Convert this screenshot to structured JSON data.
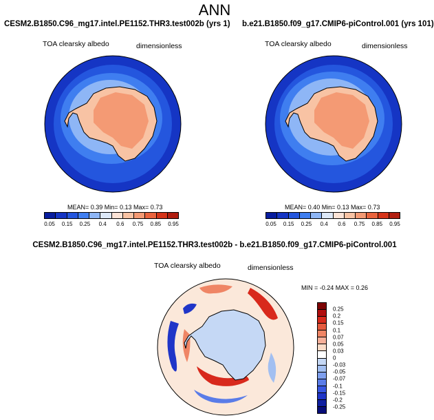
{
  "title": "ANN",
  "colors": {
    "albedo_scale": [
      "#081d9e",
      "#1535c4",
      "#2456de",
      "#3f7ef0",
      "#8eb6f6",
      "#dde8f7",
      "#fbe3d6",
      "#f8c3a4",
      "#f49a74",
      "#ea643e",
      "#d53419",
      "#b11e10",
      "#830d06"
    ],
    "diff_scale": [
      "#7d0404",
      "#b00d0d",
      "#d8291c",
      "#e55a3e",
      "#ef8565",
      "#f6b09a",
      "#fbdcc8",
      "#ffffff",
      "#c5d8f5",
      "#a2bff1",
      "#7e9fee",
      "#5a7ce8",
      "#3756e1",
      "#1f35c8",
      "#0f1fa0",
      "#070d78"
    ],
    "coast": "#000000"
  },
  "panels": {
    "left": {
      "case": "CESM2.B1850.C96_mg17.intel.PE1152.THR3.test002b (yrs 1)",
      "variable": "TOA clearsky albedo",
      "units": "dimensionless",
      "stats": "MEAN=  0.39  Min=  0.13  Max=  0.73"
    },
    "right": {
      "case": "b.e21.B1850.f09_g17.CMIP6-piControl.001 (yrs 101)",
      "variable": "TOA clearsky albedo",
      "units": "dimensionless",
      "stats": "MEAN=  0.40  Min=  0.13  Max=  0.73"
    },
    "diff": {
      "case": "CESM2.B1850.C96_mg17.intel.PE1152.THR3.test002b - b.e21.B1850.f09_g17.CMIP6-piControl.001",
      "variable": "TOA clearsky albedo",
      "units": "dimensionless",
      "stats": "MIN =  -0.24 MAX =   0.26"
    }
  },
  "colorbar_levels": [
    "0.05",
    "0.15",
    "0.25",
    "0.4",
    "0.6",
    "0.75",
    "0.85",
    "0.95"
  ],
  "diff_colorbar_levels": [
    "0.25",
    "0.2",
    "0.15",
    "0.1",
    "0.07",
    "0.05",
    "0.03",
    "0",
    "-0.03",
    "-0.05",
    "-0.07",
    "-0.1",
    "-0.15",
    "-0.2",
    "-0.25"
  ]
}
